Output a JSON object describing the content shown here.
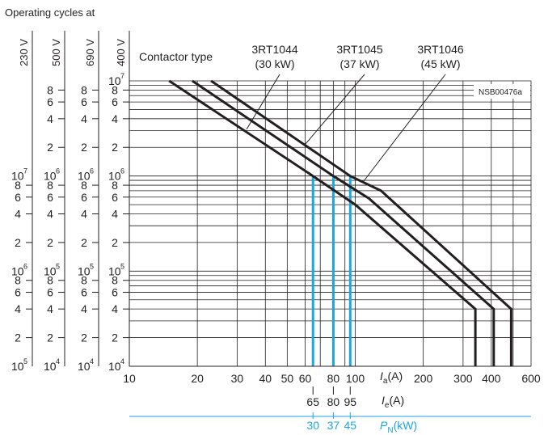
{
  "chart_data": {
    "type": "line",
    "title": "Operating cycles at",
    "legend_title": "Contactor type",
    "code": "NSB00476a",
    "x_scale": "log",
    "xlim": [
      10,
      600
    ],
    "ylim": [
      10000,
      10000000
    ],
    "y_scale": "log",
    "x_ticks": [
      {
        "value": 10,
        "label": "10"
      },
      {
        "value": 20,
        "label": "20"
      },
      {
        "value": 30,
        "label": "30"
      },
      {
        "value": 40,
        "label": "40"
      },
      {
        "value": 50,
        "label": "50"
      },
      {
        "value": 60,
        "label": "60"
      },
      {
        "value": 80,
        "label": "80"
      },
      {
        "value": 100,
        "label": "100"
      },
      {
        "value": 200,
        "label": "200"
      },
      {
        "value": 300,
        "label": "300"
      },
      {
        "value": 400,
        "label": "400"
      },
      {
        "value": 600,
        "label": "600"
      }
    ],
    "x_axis_label_main": "I",
    "x_axis_label_sub": "a",
    "x_axis_label_unit": "(A)",
    "ie_label_main": "I",
    "ie_label_sub": "e",
    "ie_label_unit": "(A)",
    "pn_label_main": "P",
    "pn_label_sub": "N",
    "pn_label_unit": "(kW)",
    "ie_ticks": [
      {
        "value": 65,
        "label": "65"
      },
      {
        "value": 80,
        "label": "80"
      },
      {
        "value": 95,
        "label": "95"
      }
    ],
    "pn_ticks": [
      {
        "value": 65,
        "label": "30"
      },
      {
        "value": 80,
        "label": "37"
      },
      {
        "value": 95,
        "label": "45"
      }
    ],
    "voltage_axes": [
      {
        "label": "230 V",
        "decades": [
          {
            "base": "10",
            "exp": "5"
          },
          {
            "base": "10",
            "exp": "6"
          },
          {
            "base": "10",
            "exp": "7"
          }
        ]
      },
      {
        "label": "500 V",
        "decades": [
          {
            "base": "10",
            "exp": "4"
          },
          {
            "base": "10",
            "exp": "5"
          },
          {
            "base": "10",
            "exp": "6"
          }
        ]
      },
      {
        "label": "690 V",
        "decades": [
          {
            "base": "10",
            "exp": "4"
          },
          {
            "base": "10",
            "exp": "5"
          },
          {
            "base": "10",
            "exp": "6"
          }
        ]
      },
      {
        "label": "400 V",
        "decades": [
          {
            "base": "10",
            "exp": "4"
          },
          {
            "base": "10",
            "exp": "5"
          },
          {
            "base": "10",
            "exp": "6"
          },
          {
            "base": "10",
            "exp": "7"
          }
        ]
      }
    ],
    "mantissa_labels": [
      "2",
      "4",
      "6",
      "8"
    ],
    "series": [
      {
        "name": "3RT1044",
        "rating": "(30 kW)",
        "color": "#231f20",
        "points": [
          [
            15,
            10000000
          ],
          [
            65,
            1000000
          ],
          [
            100,
            500000
          ],
          [
            340,
            40000
          ],
          [
            340,
            10000
          ]
        ]
      },
      {
        "name": "3RT1045",
        "rating": "(37 kW)",
        "color": "#231f20",
        "points": [
          [
            19,
            10000000
          ],
          [
            80,
            1000000
          ],
          [
            115,
            580000
          ],
          [
            410,
            40000
          ],
          [
            410,
            10000
          ]
        ]
      },
      {
        "name": "3RT1046",
        "rating": "(45 kW)",
        "color": "#231f20",
        "points": [
          [
            23,
            10000000
          ],
          [
            95,
            1000000
          ],
          [
            130,
            700000
          ],
          [
            490,
            40000
          ],
          [
            490,
            10000
          ]
        ]
      }
    ],
    "markers": [
      {
        "x": 65,
        "y": 1000000,
        "color": "#1aa7e0"
      },
      {
        "x": 80,
        "y": 1000000,
        "color": "#1aa7e0"
      },
      {
        "x": 95,
        "y": 1000000,
        "color": "#1aa7e0"
      }
    ],
    "grid": true
  }
}
